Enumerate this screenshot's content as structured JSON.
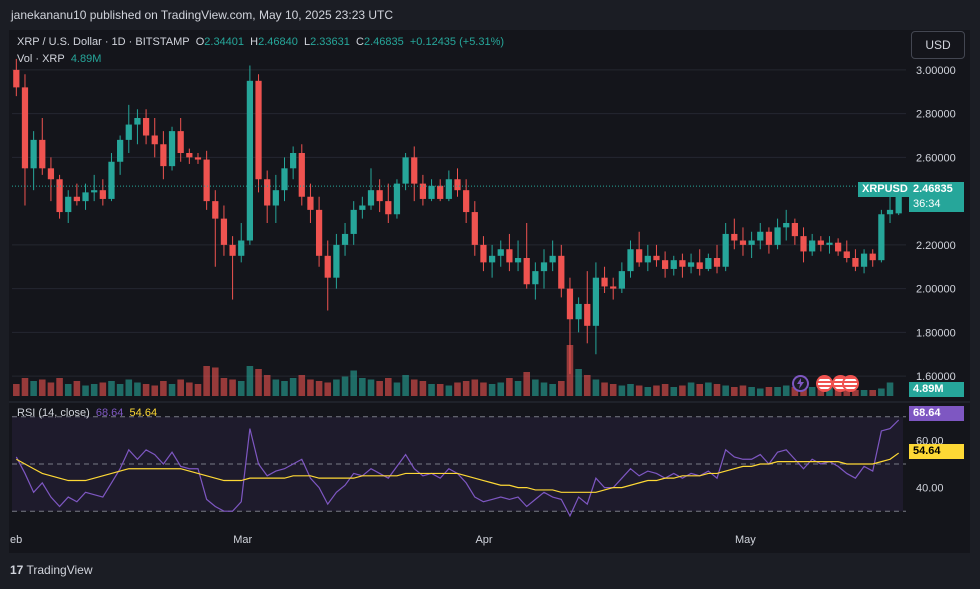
{
  "header": {
    "publisher": "janekananu10 published on TradingView.com, May 10, 2025 23:23 UTC"
  },
  "legend": {
    "symbol": "XRP / U.S. Dollar · 1D · BITSTAMP",
    "o_label": "O",
    "o_value": "2.34401",
    "h_label": "H",
    "h_value": "2.46840",
    "l_label": "L",
    "l_value": "2.33631",
    "c_label": "C",
    "c_value": "2.46835",
    "change": "+0.12435 (+5.31%)",
    "vol_label": "Vol · XRP",
    "vol_value": "4.89M",
    "rsi_label": "RSI (14, close)",
    "rsi_value": "68.64",
    "rsi_ma_value": "54.64"
  },
  "currency_button": "USD",
  "price_tag": {
    "symbol": "XRPUSD",
    "price": "2.46835",
    "countdown": "36:34"
  },
  "volume_tag": "4.89M",
  "rsi_tags": {
    "rsi": "68.64",
    "ma": "54.64"
  },
  "footer": {
    "brand": "TradingView"
  },
  "colors": {
    "up": "#26a69a",
    "down": "#ef5350",
    "rsi": "#7e57c2",
    "rsi_ma": "#fdd835",
    "bg": "#14151b"
  },
  "events": [
    "lightning-icon",
    "us-flag-icon",
    "us-flag-icon",
    "us-flag-icon"
  ],
  "chart_data": {
    "type": "candlestick",
    "price_axis": {
      "min": 1.5,
      "max": 3.1,
      "ticks": [
        3.0,
        2.8,
        2.6,
        2.2,
        2.0,
        1.8,
        1.6
      ],
      "tick_labels": [
        "3.00000",
        "2.80000",
        "2.60000",
        "2.20000",
        "2.00000",
        "1.80000",
        "1.60000"
      ]
    },
    "rsi_axis": {
      "min": 25,
      "max": 75,
      "ticks": [
        60,
        40
      ],
      "tick_labels": [
        "60.00",
        "40.00"
      ],
      "bands": [
        70,
        50,
        30
      ]
    },
    "x_labels": [
      {
        "label": "eb",
        "index": 0
      },
      {
        "label": "Mar",
        "index": 26
      },
      {
        "label": "Apr",
        "index": 54
      },
      {
        "label": "May",
        "index": 84
      }
    ],
    "candles": [
      [
        3.0,
        3.05,
        2.88,
        2.92
      ],
      [
        2.92,
        2.98,
        2.38,
        2.55
      ],
      [
        2.55,
        2.72,
        2.45,
        2.68
      ],
      [
        2.68,
        2.78,
        2.52,
        2.55
      ],
      [
        2.55,
        2.6,
        2.4,
        2.5
      ],
      [
        2.5,
        2.52,
        2.32,
        2.35
      ],
      [
        2.35,
        2.45,
        2.3,
        2.42
      ],
      [
        2.42,
        2.48,
        2.38,
        2.4
      ],
      [
        2.4,
        2.48,
        2.36,
        2.44
      ],
      [
        2.44,
        2.52,
        2.4,
        2.45
      ],
      [
        2.45,
        2.5,
        2.38,
        2.41
      ],
      [
        2.41,
        2.62,
        2.4,
        2.58
      ],
      [
        2.58,
        2.7,
        2.52,
        2.68
      ],
      [
        2.68,
        2.84,
        2.62,
        2.75
      ],
      [
        2.75,
        2.82,
        2.66,
        2.78
      ],
      [
        2.78,
        2.82,
        2.66,
        2.7
      ],
      [
        2.7,
        2.78,
        2.6,
        2.66
      ],
      [
        2.66,
        2.72,
        2.5,
        2.56
      ],
      [
        2.56,
        2.74,
        2.54,
        2.72
      ],
      [
        2.72,
        2.78,
        2.58,
        2.62
      ],
      [
        2.62,
        2.64,
        2.57,
        2.6
      ],
      [
        2.6,
        2.62,
        2.57,
        2.59
      ],
      [
        2.59,
        2.63,
        2.36,
        2.4
      ],
      [
        2.4,
        2.45,
        2.1,
        2.32
      ],
      [
        2.32,
        2.38,
        2.15,
        2.2
      ],
      [
        2.2,
        2.24,
        1.95,
        2.15
      ],
      [
        2.15,
        2.3,
        2.12,
        2.22
      ],
      [
        2.22,
        3.02,
        2.2,
        2.95
      ],
      [
        2.95,
        2.98,
        2.44,
        2.5
      ],
      [
        2.5,
        2.54,
        2.3,
        2.38
      ],
      [
        2.38,
        2.52,
        2.3,
        2.45
      ],
      [
        2.45,
        2.6,
        2.4,
        2.55
      ],
      [
        2.55,
        2.65,
        2.5,
        2.62
      ],
      [
        2.62,
        2.66,
        2.38,
        2.42
      ],
      [
        2.42,
        2.48,
        2.3,
        2.36
      ],
      [
        2.36,
        2.42,
        2.1,
        2.15
      ],
      [
        2.15,
        2.22,
        1.9,
        2.05
      ],
      [
        2.05,
        2.25,
        2.0,
        2.2
      ],
      [
        2.2,
        2.3,
        2.15,
        2.25
      ],
      [
        2.25,
        2.4,
        2.2,
        2.36
      ],
      [
        2.36,
        2.42,
        2.32,
        2.38
      ],
      [
        2.38,
        2.55,
        2.36,
        2.45
      ],
      [
        2.45,
        2.5,
        2.35,
        2.4
      ],
      [
        2.4,
        2.48,
        2.3,
        2.34
      ],
      [
        2.34,
        2.5,
        2.32,
        2.48
      ],
      [
        2.48,
        2.62,
        2.45,
        2.6
      ],
      [
        2.6,
        2.65,
        2.4,
        2.48
      ],
      [
        2.48,
        2.52,
        2.38,
        2.41
      ],
      [
        2.41,
        2.5,
        2.4,
        2.47
      ],
      [
        2.47,
        2.5,
        2.4,
        2.41
      ],
      [
        2.41,
        2.54,
        2.4,
        2.5
      ],
      [
        2.5,
        2.55,
        2.42,
        2.45
      ],
      [
        2.45,
        2.5,
        2.3,
        2.35
      ],
      [
        2.35,
        2.4,
        2.15,
        2.2
      ],
      [
        2.2,
        2.24,
        2.08,
        2.12
      ],
      [
        2.12,
        2.2,
        2.05,
        2.15
      ],
      [
        2.15,
        2.22,
        2.1,
        2.18
      ],
      [
        2.18,
        2.25,
        2.08,
        2.12
      ],
      [
        2.12,
        2.22,
        2.08,
        2.14
      ],
      [
        2.14,
        2.3,
        2.0,
        2.02
      ],
      [
        2.02,
        2.12,
        1.95,
        2.08
      ],
      [
        2.08,
        2.18,
        2.0,
        2.12
      ],
      [
        2.12,
        2.22,
        2.08,
        2.15
      ],
      [
        2.15,
        2.2,
        1.96,
        2.0
      ],
      [
        2.0,
        2.05,
        1.61,
        1.86
      ],
      [
        1.86,
        1.96,
        1.8,
        1.93
      ],
      [
        1.93,
        2.08,
        1.75,
        1.83
      ],
      [
        1.83,
        2.12,
        1.7,
        2.05
      ],
      [
        2.05,
        2.1,
        1.98,
        2.01
      ],
      [
        2.01,
        2.05,
        1.95,
        2.0
      ],
      [
        2.0,
        2.12,
        1.98,
        2.08
      ],
      [
        2.08,
        2.22,
        2.05,
        2.18
      ],
      [
        2.18,
        2.26,
        2.1,
        2.12
      ],
      [
        2.12,
        2.2,
        2.08,
        2.15
      ],
      [
        2.15,
        2.2,
        2.1,
        2.13
      ],
      [
        2.13,
        2.17,
        2.05,
        2.09
      ],
      [
        2.09,
        2.15,
        2.06,
        2.13
      ],
      [
        2.13,
        2.16,
        2.05,
        2.1
      ],
      [
        2.1,
        2.16,
        2.07,
        2.12
      ],
      [
        2.12,
        2.18,
        2.06,
        2.09
      ],
      [
        2.09,
        2.16,
        2.08,
        2.14
      ],
      [
        2.14,
        2.2,
        2.07,
        2.1
      ],
      [
        2.1,
        2.3,
        2.08,
        2.25
      ],
      [
        2.25,
        2.32,
        2.18,
        2.22
      ],
      [
        2.22,
        2.28,
        2.15,
        2.2
      ],
      [
        2.2,
        2.26,
        2.14,
        2.22
      ],
      [
        2.22,
        2.3,
        2.18,
        2.26
      ],
      [
        2.26,
        2.28,
        2.16,
        2.2
      ],
      [
        2.2,
        2.32,
        2.18,
        2.28
      ],
      [
        2.28,
        2.36,
        2.22,
        2.3
      ],
      [
        2.3,
        2.32,
        2.2,
        2.24
      ],
      [
        2.24,
        2.28,
        2.12,
        2.17
      ],
      [
        2.17,
        2.25,
        2.15,
        2.22
      ],
      [
        2.22,
        2.24,
        2.17,
        2.2
      ],
      [
        2.2,
        2.24,
        2.16,
        2.21
      ],
      [
        2.21,
        2.23,
        2.15,
        2.17
      ],
      [
        2.17,
        2.22,
        2.12,
        2.14
      ],
      [
        2.14,
        2.18,
        2.08,
        2.1
      ],
      [
        2.1,
        2.18,
        2.07,
        2.16
      ],
      [
        2.16,
        2.18,
        2.1,
        2.13
      ],
      [
        2.13,
        2.36,
        2.12,
        2.34
      ],
      [
        2.34,
        2.42,
        2.3,
        2.36
      ],
      [
        2.34401,
        2.4684,
        2.33631,
        2.46835
      ]
    ],
    "volume_relative": [
      0.4,
      0.6,
      0.5,
      0.55,
      0.45,
      0.6,
      0.4,
      0.5,
      0.35,
      0.4,
      0.45,
      0.5,
      0.4,
      0.55,
      0.45,
      0.4,
      0.35,
      0.5,
      0.4,
      0.55,
      0.45,
      0.4,
      1.0,
      0.95,
      0.6,
      0.55,
      0.5,
      1.0,
      0.9,
      0.7,
      0.55,
      0.5,
      0.6,
      0.7,
      0.55,
      0.5,
      0.45,
      0.55,
      0.65,
      0.85,
      0.6,
      0.55,
      0.5,
      0.6,
      0.45,
      0.7,
      0.55,
      0.5,
      0.4,
      0.4,
      0.35,
      0.45,
      0.5,
      0.55,
      0.45,
      0.4,
      0.45,
      0.6,
      0.5,
      0.8,
      0.55,
      0.45,
      0.4,
      0.5,
      1.7,
      0.9,
      0.7,
      0.55,
      0.45,
      0.4,
      0.35,
      0.4,
      0.35,
      0.3,
      0.35,
      0.4,
      0.3,
      0.35,
      0.45,
      0.4,
      0.45,
      0.4,
      0.35,
      0.3,
      0.35,
      0.3,
      0.25,
      0.3,
      0.3,
      0.35,
      0.3,
      0.25,
      0.3,
      0.4,
      0.3,
      0.25,
      0.25,
      0.2,
      0.2,
      0.2,
      0.25,
      0.45
    ],
    "rsi": [
      53,
      46,
      38,
      42,
      36,
      32,
      36,
      34,
      38,
      37,
      36,
      42,
      48,
      56,
      52,
      56,
      54,
      50,
      55,
      49,
      48,
      48,
      35,
      32,
      30,
      30,
      34,
      65,
      50,
      45,
      47,
      48,
      50,
      52,
      44,
      40,
      33,
      38,
      41,
      46,
      45,
      48,
      46,
      44,
      49,
      54,
      48,
      45,
      46,
      44,
      48,
      46,
      42,
      36,
      34,
      35,
      36,
      35,
      36,
      32,
      35,
      38,
      36,
      35,
      28,
      36,
      33,
      44,
      40,
      40,
      44,
      48,
      45,
      47,
      46,
      44,
      46,
      44,
      46,
      45,
      47,
      44,
      56,
      53,
      52,
      52,
      54,
      50,
      55,
      56,
      52,
      48,
      52,
      50,
      51,
      49,
      46,
      44,
      49,
      47,
      64,
      65,
      68.64
    ],
    "rsi_ma": [
      52,
      50,
      48,
      46,
      45,
      44,
      43,
      43,
      43,
      44,
      45,
      46,
      47,
      48,
      48,
      48,
      48,
      48,
      48,
      48,
      47,
      46,
      45,
      44,
      43,
      43,
      43,
      44,
      44,
      44,
      44,
      44,
      45,
      45,
      45,
      44,
      44,
      44,
      44,
      44,
      45,
      45,
      45,
      45,
      45,
      46,
      46,
      46,
      46,
      46,
      46,
      46,
      45,
      44,
      43,
      42,
      41,
      41,
      40,
      40,
      39,
      39,
      39,
      38,
      38,
      38,
      38,
      38,
      39,
      40,
      40,
      41,
      42,
      43,
      43,
      44,
      44,
      45,
      45,
      45,
      46,
      46,
      47,
      48,
      49,
      49,
      50,
      50,
      51,
      51,
      51,
      51,
      51,
      51,
      51,
      51,
      50,
      50,
      50,
      50,
      51,
      52,
      54.64
    ]
  }
}
